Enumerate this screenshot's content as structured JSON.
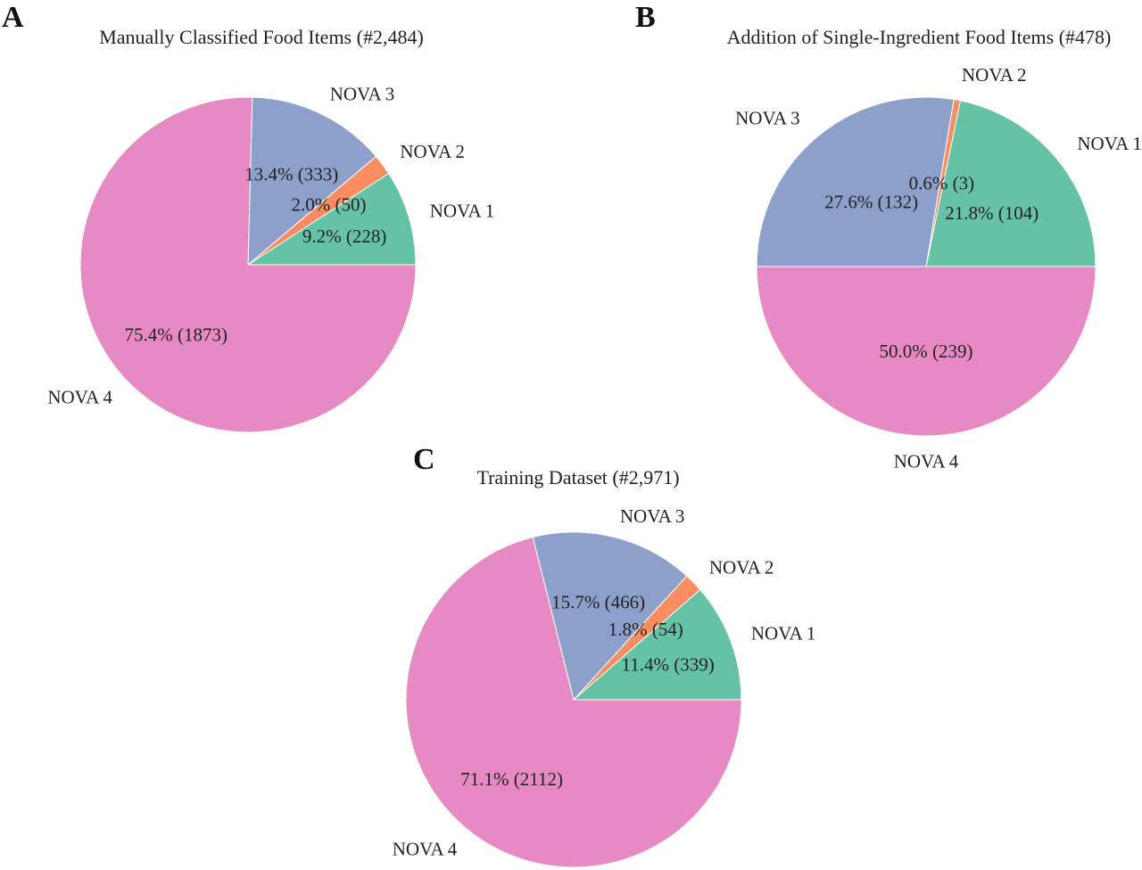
{
  "colors": {
    "NOVA 1": "#66c2a5",
    "NOVA 2": "#fc8d62",
    "NOVA 3": "#8da0cb",
    "NOVA 4": "#e78ac3"
  },
  "chart_data": [
    {
      "panel": "A",
      "type": "pie",
      "title": "Manually Classified Food Items (#2,484)",
      "start_angle": 0,
      "slices": [
        {
          "label": "NOVA 1",
          "value": 228,
          "pct_text": "9.2% (228)"
        },
        {
          "label": "NOVA 2",
          "value": 50,
          "pct_text": "2.0% (50)"
        },
        {
          "label": "NOVA 3",
          "value": 333,
          "pct_text": "13.4% (333)"
        },
        {
          "label": "NOVA 4",
          "value": 1873,
          "pct_text": "75.4% (1873)"
        }
      ]
    },
    {
      "panel": "B",
      "type": "pie",
      "title": "Addition of Single-Ingredient Food Items (#478)",
      "start_angle": 0,
      "slices": [
        {
          "label": "NOVA 1",
          "value": 104,
          "pct_text": "21.8% (104)"
        },
        {
          "label": "NOVA 2",
          "value": 3,
          "pct_text": "0.6% (3)"
        },
        {
          "label": "NOVA 3",
          "value": 132,
          "pct_text": "27.6% (132)"
        },
        {
          "label": "NOVA 4",
          "value": 239,
          "pct_text": "50.0% (239)"
        }
      ]
    },
    {
      "panel": "C",
      "type": "pie",
      "title": "Training Dataset (#2,971)",
      "start_angle": 0,
      "slices": [
        {
          "label": "NOVA 1",
          "value": 339,
          "pct_text": "11.4% (339)"
        },
        {
          "label": "NOVA 2",
          "value": 54,
          "pct_text": "1.8% (54)"
        },
        {
          "label": "NOVA 3",
          "value": 466,
          "pct_text": "15.7% (466)"
        },
        {
          "label": "NOVA 4",
          "value": 2112,
          "pct_text": "71.1% (2112)"
        }
      ]
    }
  ]
}
